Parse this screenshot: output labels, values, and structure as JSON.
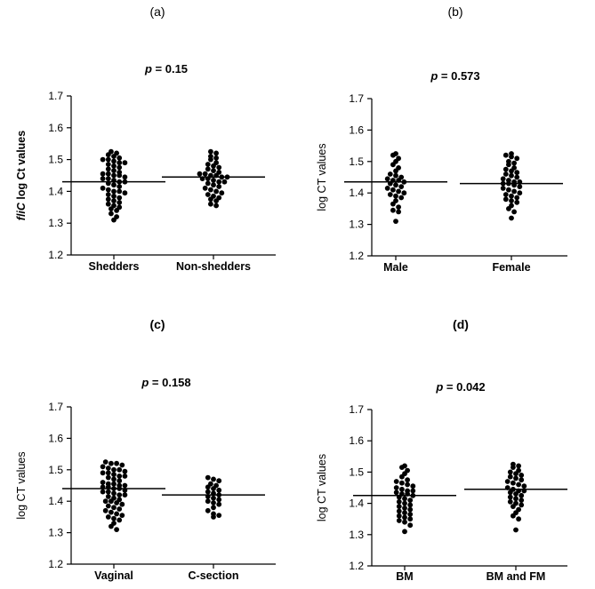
{
  "chart_data": [
    {
      "type": "scatter",
      "panel": "(a)",
      "p_prefix": "p",
      "p_text": " = 0.15",
      "ylabel_italic": "fliC",
      "ylabel_rest": " log Ct values",
      "ylim": [
        1.2,
        1.7
      ],
      "yticks": [
        "1.2",
        "1.3",
        "1.4",
        "1.5",
        "1.6",
        "1.7"
      ],
      "categories": [
        "Shedders",
        "Non-shedders"
      ],
      "means": [
        1.43,
        1.445
      ],
      "series": [
        {
          "name": "Shedders",
          "values": [
            1.525,
            1.52,
            1.515,
            1.51,
            1.505,
            1.5,
            1.5,
            1.495,
            1.49,
            1.49,
            1.485,
            1.48,
            1.475,
            1.47,
            1.465,
            1.46,
            1.455,
            1.455,
            1.45,
            1.45,
            1.445,
            1.44,
            1.44,
            1.435,
            1.43,
            1.43,
            1.425,
            1.42,
            1.415,
            1.41,
            1.405,
            1.4,
            1.4,
            1.395,
            1.39,
            1.385,
            1.38,
            1.375,
            1.37,
            1.365,
            1.36,
            1.355,
            1.35,
            1.345,
            1.34,
            1.33,
            1.32,
            1.31
          ]
        },
        {
          "name": "Non-shedders",
          "values": [
            1.525,
            1.52,
            1.51,
            1.505,
            1.5,
            1.49,
            1.485,
            1.48,
            1.475,
            1.47,
            1.465,
            1.46,
            1.455,
            1.455,
            1.45,
            1.45,
            1.445,
            1.445,
            1.44,
            1.44,
            1.435,
            1.43,
            1.43,
            1.425,
            1.42,
            1.415,
            1.41,
            1.405,
            1.4,
            1.395,
            1.39,
            1.385,
            1.38,
            1.375,
            1.37,
            1.36,
            1.355
          ]
        }
      ]
    },
    {
      "type": "scatter",
      "panel": "(b)",
      "p_prefix": "p",
      "p_text": " = 0.573",
      "ylabel_italic": "",
      "ylabel_rest": "log CT values",
      "ylim": [
        1.2,
        1.7
      ],
      "yticks": [
        "1.2",
        "1.3",
        "1.4",
        "1.5",
        "1.6",
        "1.7"
      ],
      "categories": [
        "Male",
        "Female"
      ],
      "means": [
        1.435,
        1.43
      ],
      "series": [
        {
          "name": "Male",
          "values": [
            1.525,
            1.52,
            1.51,
            1.5,
            1.49,
            1.48,
            1.47,
            1.46,
            1.455,
            1.45,
            1.445,
            1.44,
            1.44,
            1.435,
            1.43,
            1.425,
            1.42,
            1.415,
            1.41,
            1.405,
            1.4,
            1.395,
            1.39,
            1.385,
            1.375,
            1.365,
            1.355,
            1.345,
            1.34,
            1.31
          ]
        },
        {
          "name": "Female",
          "values": [
            1.525,
            1.52,
            1.515,
            1.51,
            1.5,
            1.495,
            1.49,
            1.48,
            1.475,
            1.47,
            1.465,
            1.46,
            1.455,
            1.45,
            1.445,
            1.44,
            1.435,
            1.435,
            1.43,
            1.43,
            1.425,
            1.42,
            1.415,
            1.41,
            1.405,
            1.4,
            1.395,
            1.39,
            1.385,
            1.38,
            1.375,
            1.37,
            1.36,
            1.35,
            1.34,
            1.32
          ]
        }
      ]
    },
    {
      "type": "scatter",
      "panel": "(c)",
      "p_prefix": "p",
      "p_text": " = 0.158",
      "ylabel_italic": "",
      "ylabel_rest": "log CT values",
      "ylim": [
        1.2,
        1.7
      ],
      "yticks": [
        "1.2",
        "1.3",
        "1.4",
        "1.5",
        "1.6",
        "1.7"
      ],
      "categories": [
        "Vaginal",
        "C-section"
      ],
      "means": [
        1.44,
        1.42
      ],
      "series": [
        {
          "name": "Vaginal",
          "values": [
            1.525,
            1.52,
            1.52,
            1.515,
            1.51,
            1.505,
            1.5,
            1.5,
            1.495,
            1.49,
            1.49,
            1.485,
            1.48,
            1.48,
            1.475,
            1.47,
            1.465,
            1.46,
            1.455,
            1.455,
            1.45,
            1.45,
            1.445,
            1.445,
            1.44,
            1.44,
            1.435,
            1.43,
            1.43,
            1.425,
            1.42,
            1.42,
            1.415,
            1.41,
            1.405,
            1.4,
            1.4,
            1.395,
            1.39,
            1.385,
            1.38,
            1.375,
            1.37,
            1.365,
            1.36,
            1.355,
            1.35,
            1.345,
            1.34,
            1.33,
            1.32,
            1.31
          ]
        },
        {
          "name": "C-section",
          "values": [
            1.475,
            1.47,
            1.465,
            1.455,
            1.45,
            1.445,
            1.44,
            1.435,
            1.43,
            1.425,
            1.42,
            1.415,
            1.41,
            1.405,
            1.4,
            1.395,
            1.39,
            1.38,
            1.37,
            1.36,
            1.355,
            1.35
          ]
        }
      ]
    },
    {
      "type": "scatter",
      "panel": "(d)",
      "p_prefix": "p",
      "p_text": " = 0.042",
      "ylabel_italic": "",
      "ylabel_rest": "log CT values",
      "ylim": [
        1.2,
        1.7
      ],
      "yticks": [
        "1.2",
        "1.3",
        "1.4",
        "1.5",
        "1.6",
        "1.7"
      ],
      "categories": [
        "BM",
        "BM and FM"
      ],
      "means": [
        1.425,
        1.445
      ],
      "series": [
        {
          "name": "BM",
          "values": [
            1.52,
            1.515,
            1.505,
            1.495,
            1.485,
            1.475,
            1.47,
            1.465,
            1.46,
            1.455,
            1.45,
            1.445,
            1.44,
            1.44,
            1.435,
            1.43,
            1.43,
            1.425,
            1.42,
            1.415,
            1.41,
            1.405,
            1.4,
            1.395,
            1.39,
            1.385,
            1.38,
            1.375,
            1.37,
            1.365,
            1.36,
            1.355,
            1.35,
            1.345,
            1.34,
            1.33,
            1.31
          ]
        },
        {
          "name": "BM and FM",
          "values": [
            1.525,
            1.52,
            1.515,
            1.505,
            1.5,
            1.495,
            1.49,
            1.485,
            1.48,
            1.475,
            1.47,
            1.465,
            1.46,
            1.455,
            1.45,
            1.445,
            1.44,
            1.44,
            1.435,
            1.43,
            1.425,
            1.42,
            1.415,
            1.41,
            1.405,
            1.4,
            1.395,
            1.39,
            1.38,
            1.37,
            1.36,
            1.35,
            1.315
          ]
        }
      ]
    }
  ]
}
